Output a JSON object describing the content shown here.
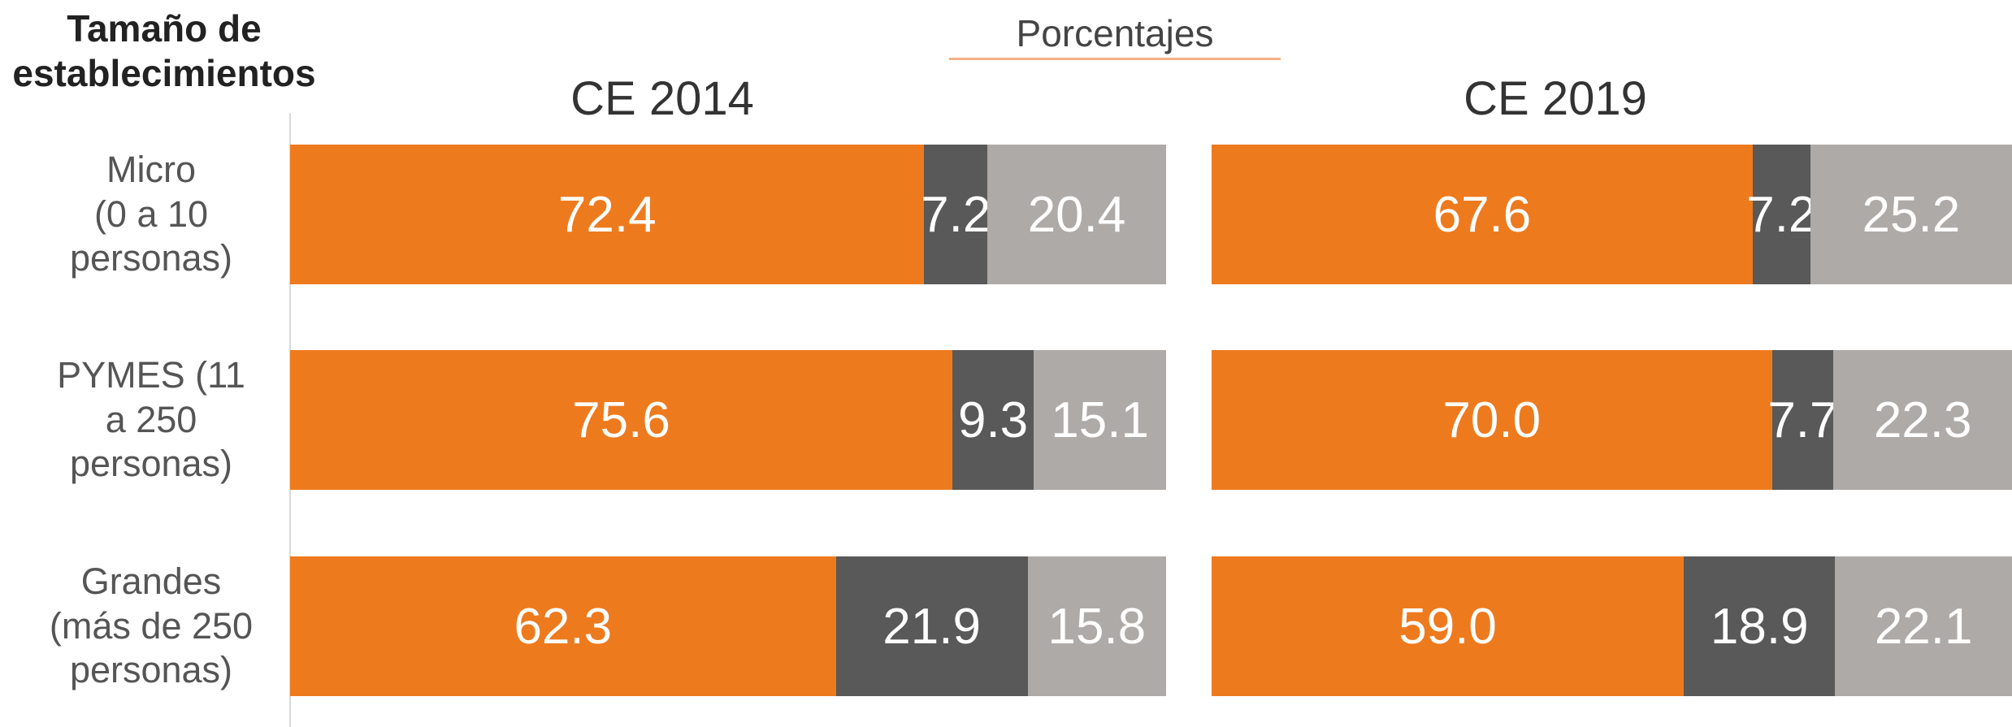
{
  "header": "Tamaño de\nestablecimientos",
  "subtitle": "Porcentajes",
  "chart_data": [
    {
      "type": "bar",
      "title": "CE 2014",
      "categories": [
        "Micro\n(0 a 10\npersonas)",
        "PYMES (11\na 250\npersonas)",
        "Grandes\n(más de 250\npersonas)"
      ],
      "xlim": [
        0,
        100
      ],
      "series": [
        {
          "color": "#ee7a1e",
          "values": [
            72.4,
            75.6,
            62.3
          ],
          "value_labels": [
            "72.4",
            "75.6",
            "62.3"
          ]
        },
        {
          "color": "#595959",
          "values": [
            7.2,
            9.3,
            21.9
          ],
          "value_labels": [
            "7.2",
            "9.3",
            "21.9"
          ]
        },
        {
          "color": "#aeaaa8",
          "values": [
            20.4,
            15.1,
            15.8
          ],
          "value_labels": [
            "20.4",
            "15.1",
            "15.8"
          ]
        }
      ]
    },
    {
      "type": "bar",
      "title": "CE 2019",
      "xlim": [
        0,
        100
      ],
      "series": [
        {
          "color": "#ee7a1e",
          "values": [
            67.6,
            70.0,
            59.0
          ],
          "value_labels": [
            "67.6",
            "70.0",
            "59.0"
          ]
        },
        {
          "color": "#595959",
          "values": [
            7.2,
            7.7,
            18.9
          ],
          "value_labels": [
            "7.2",
            "7.7",
            "18.9"
          ]
        },
        {
          "color": "#aeaaa8",
          "values": [
            25.2,
            22.3,
            22.1
          ],
          "value_labels": [
            "25.2",
            "22.3",
            "22.1"
          ]
        }
      ]
    }
  ]
}
